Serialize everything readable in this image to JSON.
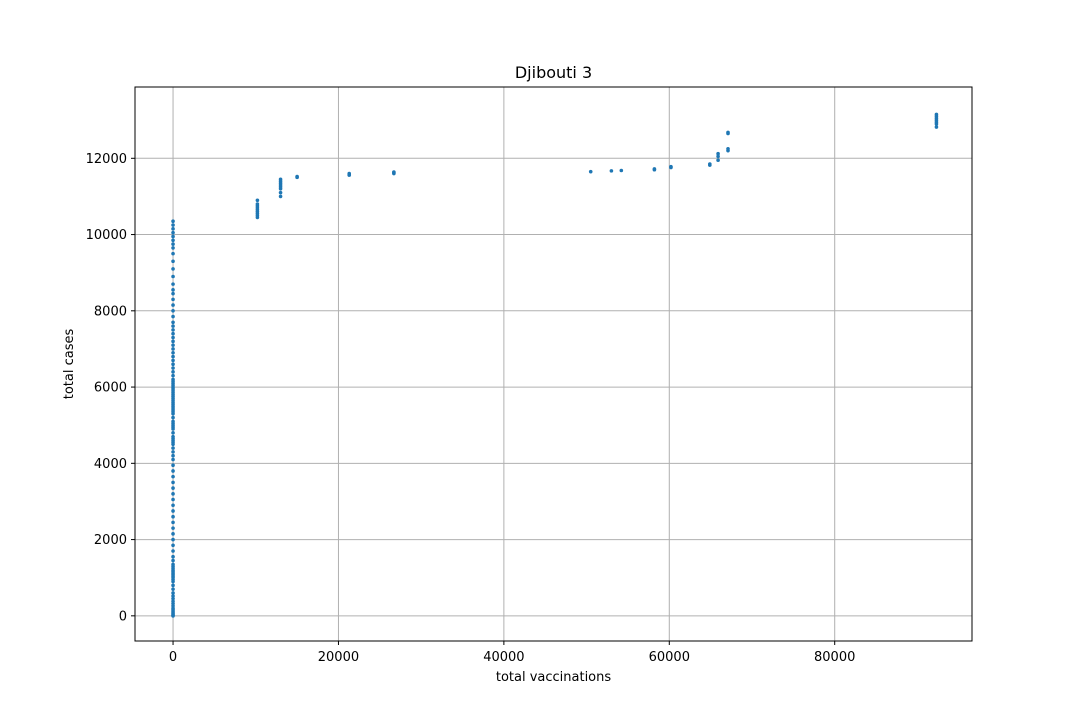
{
  "chart_data": {
    "type": "scatter",
    "title": "Djibouti 3",
    "xlabel": "total vaccinations",
    "ylabel": "total cases",
    "xlim": [
      -4600,
      96600
    ],
    "ylim": [
      -660,
      13870
    ],
    "xticks": [
      0,
      20000,
      40000,
      60000,
      80000
    ],
    "yticks": [
      0,
      2000,
      4000,
      6000,
      8000,
      10000,
      12000
    ],
    "xtick_labels": [
      "0",
      "20000",
      "40000",
      "60000",
      "80000"
    ],
    "ytick_labels": [
      "0",
      "2000",
      "4000",
      "6000",
      "8000",
      "10000",
      "12000"
    ],
    "grid": true,
    "color": "#1f77b4",
    "points": [
      [
        0,
        0
      ],
      [
        0,
        20
      ],
      [
        0,
        50
      ],
      [
        0,
        80
      ],
      [
        0,
        120
      ],
      [
        0,
        160
      ],
      [
        0,
        200
      ],
      [
        0,
        260
      ],
      [
        0,
        320
      ],
      [
        0,
        380
      ],
      [
        0,
        450
      ],
      [
        0,
        520
      ],
      [
        0,
        600
      ],
      [
        0,
        700
      ],
      [
        0,
        800
      ],
      [
        0,
        900
      ],
      [
        0,
        950
      ],
      [
        0,
        1000
      ],
      [
        0,
        1040
      ],
      [
        0,
        1080
      ],
      [
        0,
        1120
      ],
      [
        0,
        1160
      ],
      [
        0,
        1200
      ],
      [
        0,
        1250
      ],
      [
        0,
        1300
      ],
      [
        0,
        1350
      ],
      [
        0,
        1450
      ],
      [
        0,
        1550
      ],
      [
        0,
        1700
      ],
      [
        0,
        1850
      ],
      [
        0,
        2000
      ],
      [
        0,
        2150
      ],
      [
        0,
        2300
      ],
      [
        0,
        2450
      ],
      [
        0,
        2600
      ],
      [
        0,
        2750
      ],
      [
        0,
        2900
      ],
      [
        0,
        3050
      ],
      [
        0,
        3200
      ],
      [
        0,
        3350
      ],
      [
        0,
        3500
      ],
      [
        0,
        3650
      ],
      [
        0,
        3800
      ],
      [
        0,
        3950
      ],
      [
        0,
        4100
      ],
      [
        0,
        4200
      ],
      [
        0,
        4300
      ],
      [
        0,
        4400
      ],
      [
        0,
        4500
      ],
      [
        0,
        4550
      ],
      [
        0,
        4600
      ],
      [
        0,
        4650
      ],
      [
        0,
        4700
      ],
      [
        0,
        4800
      ],
      [
        0,
        4900
      ],
      [
        0,
        4950
      ],
      [
        0,
        5000
      ],
      [
        0,
        5050
      ],
      [
        0,
        5100
      ],
      [
        0,
        5200
      ],
      [
        0,
        5300
      ],
      [
        0,
        5350
      ],
      [
        0,
        5400
      ],
      [
        0,
        5450
      ],
      [
        0,
        5500
      ],
      [
        0,
        5550
      ],
      [
        0,
        5600
      ],
      [
        0,
        5650
      ],
      [
        0,
        5700
      ],
      [
        0,
        5750
      ],
      [
        0,
        5800
      ],
      [
        0,
        5850
      ],
      [
        0,
        5900
      ],
      [
        0,
        5950
      ],
      [
        0,
        6000
      ],
      [
        0,
        6050
      ],
      [
        0,
        6100
      ],
      [
        0,
        6150
      ],
      [
        0,
        6200
      ],
      [
        0,
        6300
      ],
      [
        0,
        6400
      ],
      [
        0,
        6500
      ],
      [
        0,
        6600
      ],
      [
        0,
        6700
      ],
      [
        0,
        6800
      ],
      [
        0,
        6900
      ],
      [
        0,
        7000
      ],
      [
        0,
        7100
      ],
      [
        0,
        7200
      ],
      [
        0,
        7300
      ],
      [
        0,
        7400
      ],
      [
        0,
        7500
      ],
      [
        0,
        7600
      ],
      [
        0,
        7700
      ],
      [
        0,
        7850
      ],
      [
        0,
        8000
      ],
      [
        0,
        8150
      ],
      [
        0,
        8300
      ],
      [
        0,
        8450
      ],
      [
        0,
        8550
      ],
      [
        0,
        8700
      ],
      [
        0,
        8900
      ],
      [
        0,
        9100
      ],
      [
        0,
        9300
      ],
      [
        0,
        9500
      ],
      [
        0,
        9650
      ],
      [
        0,
        9750
      ],
      [
        0,
        9850
      ],
      [
        0,
        9950
      ],
      [
        0,
        10050
      ],
      [
        0,
        10150
      ],
      [
        0,
        10250
      ],
      [
        0,
        10350
      ],
      [
        10200,
        10450
      ],
      [
        10200,
        10500
      ],
      [
        10200,
        10550
      ],
      [
        10200,
        10600
      ],
      [
        10200,
        10650
      ],
      [
        10200,
        10700
      ],
      [
        10200,
        10750
      ],
      [
        10200,
        10800
      ],
      [
        10200,
        10900
      ],
      [
        13000,
        11000
      ],
      [
        13000,
        11100
      ],
      [
        13000,
        11200
      ],
      [
        13000,
        11250
      ],
      [
        13000,
        11300
      ],
      [
        13000,
        11350
      ],
      [
        13000,
        11400
      ],
      [
        13000,
        11450
      ],
      [
        15000,
        11500
      ],
      [
        15000,
        11520
      ],
      [
        21300,
        11560
      ],
      [
        21300,
        11580
      ],
      [
        21300,
        11600
      ],
      [
        26700,
        11600
      ],
      [
        26700,
        11620
      ],
      [
        26700,
        11640
      ],
      [
        50500,
        11650
      ],
      [
        53000,
        11670
      ],
      [
        54200,
        11680
      ],
      [
        58200,
        11700
      ],
      [
        58200,
        11720
      ],
      [
        60200,
        11760
      ],
      [
        60200,
        11780
      ],
      [
        64900,
        11820
      ],
      [
        64900,
        11850
      ],
      [
        65900,
        11950
      ],
      [
        65900,
        12050
      ],
      [
        65900,
        12120
      ],
      [
        67100,
        12200
      ],
      [
        67100,
        12250
      ],
      [
        67100,
        12650
      ],
      [
        67100,
        12680
      ],
      [
        92300,
        12820
      ],
      [
        92300,
        12900
      ],
      [
        92300,
        12950
      ],
      [
        92300,
        13000
      ],
      [
        92300,
        13050
      ],
      [
        92300,
        13100
      ],
      [
        92300,
        13150
      ]
    ]
  }
}
